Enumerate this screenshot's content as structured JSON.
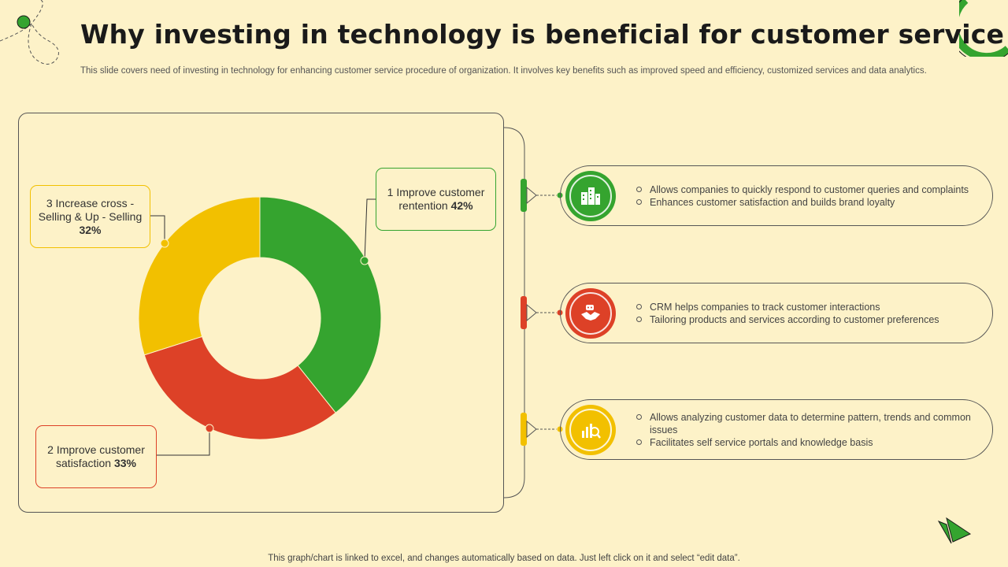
{
  "slide": {
    "title": "Why investing in technology is beneficial for customer service",
    "subtitle": "This slide covers need of investing in technology for enhancing customer service procedure of organization. It involves key benefits such as improved speed and efficiency, customized services and data analytics.",
    "footer": "This graph/chart is linked to excel, and changes automatically based on data. Just left click on it and select “edit data”."
  },
  "chart_data": {
    "type": "pie",
    "title": "",
    "categories": [
      "1 Improve customer rentention",
      "2 Improve customer satisfaction",
      "3 Increase cross - Selling & Up - Selling"
    ],
    "values": [
      42,
      33,
      32
    ],
    "value_suffix": "%",
    "colors": [
      "#35a42f",
      "#dd4127",
      "#f2c000"
    ],
    "donut": true,
    "legend": "callouts"
  },
  "callouts": [
    {
      "label": "1 Improve customer rentention",
      "value": "42%"
    },
    {
      "label": "2 Improve customer satisfaction",
      "value": "33%"
    },
    {
      "label": "3 Increase cross - Selling & Up - Selling",
      "value": "32%"
    }
  ],
  "benefits": [
    {
      "icon": "buildings-icon",
      "color": "#35a42f",
      "points": [
        "Allows companies to quickly respond to customer queries and complaints",
        "Enhances customer satisfaction and builds brand loyalty"
      ]
    },
    {
      "icon": "handshake-icon",
      "color": "#dd4127",
      "points": [
        "CRM helps companies to track customer interactions",
        "Tailoring products and services according to customer preferences"
      ]
    },
    {
      "icon": "analytics-icon",
      "color": "#f2c000",
      "points": [
        "Allows analyzing customer data to determine pattern, trends and common issues",
        "Facilitates self service portals and knowledge basis"
      ]
    }
  ]
}
